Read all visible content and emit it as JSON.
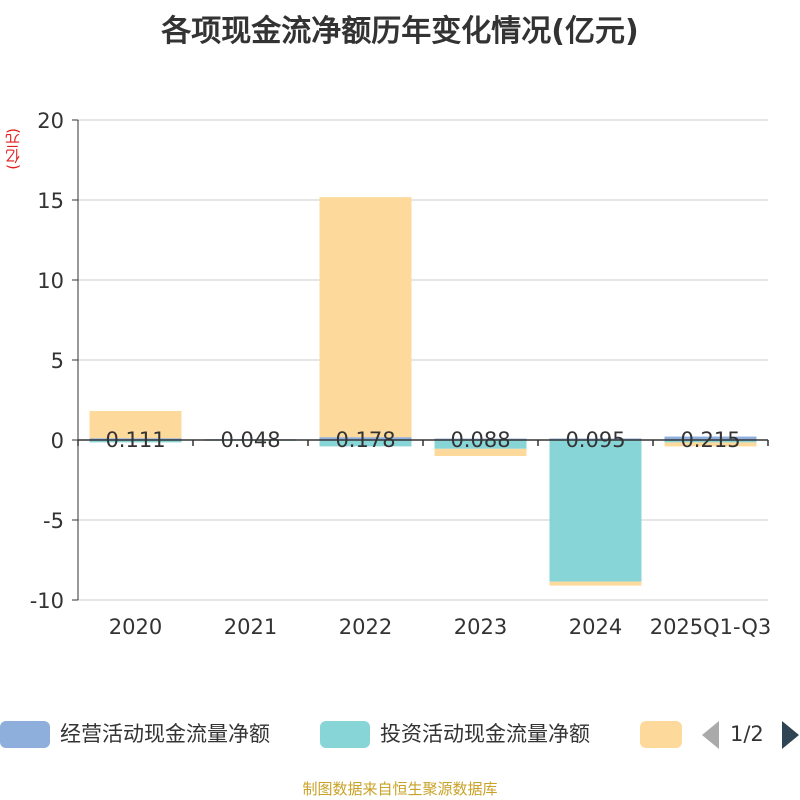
{
  "chart_data": {
    "type": "bar",
    "stacked": true,
    "title": "各项现金流净额历年变化情况(亿元)",
    "ylabel": "(亿元)",
    "xlabel": "",
    "ylim": [
      -10,
      20
    ],
    "yticks": [
      20,
      15,
      10,
      5,
      0,
      -5,
      -10
    ],
    "categories": [
      "2020",
      "2021",
      "2022",
      "2023",
      "2024",
      "2025Q1-Q3"
    ],
    "series": [
      {
        "name": "经营活动现金流量净额",
        "color": "#8eaedc",
        "values": [
          0.111,
          0.048,
          0.178,
          0.088,
          0.095,
          0.215
        ],
        "labels": [
          "0.111",
          "0.048",
          "0.178",
          "0.088",
          "0.095",
          "0.215"
        ]
      },
      {
        "name": "投资活动现金流量净额",
        "color": "#88d5d8",
        "values": [
          -0.15,
          -0.05,
          -0.4,
          -0.55,
          -8.85,
          -0.15
        ]
      },
      {
        "name": "",
        "color": "#fdd99b",
        "values": [
          1.7,
          0.0,
          15.0,
          -0.45,
          -0.25,
          -0.25
        ]
      }
    ],
    "legend": {
      "position": "bottom",
      "page": "1/2"
    }
  },
  "source": "制图数据来自恒生聚源数据库"
}
